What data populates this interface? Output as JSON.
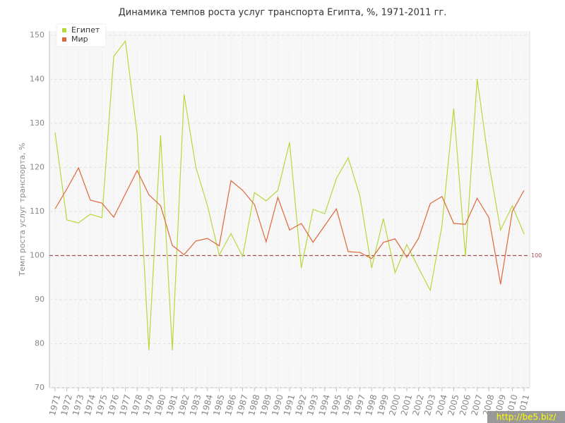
{
  "chart_data": {
    "type": "line",
    "title": "Динамика темпов роста услуг транспорта Египта, %, 1971-2011 гг.",
    "y_label": "Темп роста услуг транспорта, %",
    "categories": [
      "1971",
      "1972",
      "1973",
      "1974",
      "1975",
      "1976",
      "1977",
      "1978",
      "1979",
      "1980",
      "1981",
      "1982",
      "1983",
      "1984",
      "1985",
      "1986",
      "1987",
      "1988",
      "1989",
      "1990",
      "1991",
      "1992",
      "1993",
      "1994",
      "1995",
      "1996",
      "1997",
      "1998",
      "1999",
      "2000",
      "2001",
      "2002",
      "2003",
      "2004",
      "2005",
      "2006",
      "2007",
      "2008",
      "2009",
      "2010",
      "2011"
    ],
    "series": [
      {
        "name": "Египет",
        "color": "#b5d93b",
        "values": [
          127.9,
          108.1,
          107.4,
          109.4,
          108.6,
          145.2,
          148.7,
          127.6,
          78.5,
          127.3,
          78.5,
          136.6,
          120.1,
          111.3,
          100.1,
          105,
          99.8,
          114.3,
          112.4,
          114.8,
          125.7,
          97.2,
          110.5,
          109.5,
          117.5,
          122.2,
          113.5,
          97.2,
          108.4,
          96.1,
          102.5,
          97.2,
          92.1,
          106.8,
          133.4,
          99.8,
          140.1,
          120.9,
          105.8,
          111.3,
          104.9
        ]
      },
      {
        "name": "Мир",
        "color": "#e0673a",
        "values": [
          110.6,
          115.1,
          119.9,
          112.6,
          111.9,
          108.7,
          114,
          119.3,
          113.8,
          111.3,
          102.3,
          100.2,
          103.3,
          103.9,
          102.2,
          117,
          114.8,
          111.6,
          103.1,
          113.2,
          105.8,
          107.3,
          103,
          106.8,
          110.6,
          100.9,
          100.7,
          99.3,
          103,
          103.8,
          99.6,
          103.9,
          111.8,
          113.4,
          107.3,
          107.1,
          113,
          108.6,
          93.5,
          110,
          114.8
        ]
      }
    ],
    "ylim": [
      70,
      150
    ],
    "yticks": [
      70,
      80,
      90,
      100,
      110,
      120,
      130,
      140,
      150
    ],
    "grid": true,
    "reference_line": 100,
    "legend": "top-left",
    "watermark": "http://be5.biz/"
  }
}
